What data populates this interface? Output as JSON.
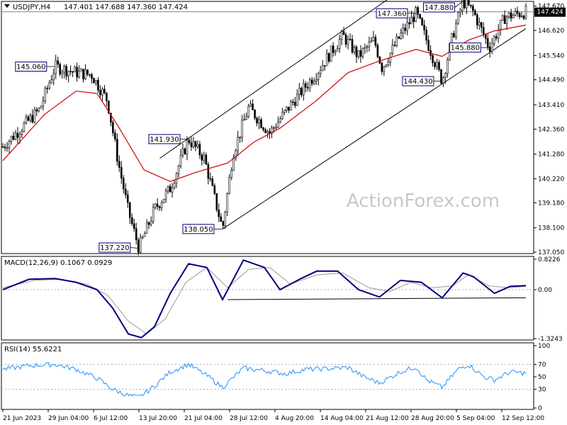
{
  "header": {
    "symbol_tf": "USDJPY,H4",
    "ohlc": "147.401 147.688 147.360 147.424"
  },
  "watermark": "ActionForex.com",
  "colors": {
    "candle": "#000000",
    "ma": "#cc0000",
    "macd": "#000080",
    "signal": "#999999",
    "rsi": "#1e90ff",
    "channel": "#000000",
    "label_border": "#000080",
    "price_tag_bg": "#000000"
  },
  "chart_data": [
    {
      "type": "candlestick",
      "title": "USDJPY,H4",
      "ylim": [
        137.05,
        147.75
      ],
      "ytick_labels": [
        "147.670",
        "146.620",
        "145.540",
        "144.490",
        "143.410",
        "142.360",
        "141.280",
        "140.220",
        "139.180",
        "138.100",
        "137.050"
      ],
      "ytick_values": [
        147.67,
        146.62,
        145.54,
        144.49,
        143.41,
        142.36,
        141.28,
        140.22,
        139.18,
        138.1,
        137.05
      ],
      "xtick_labels": [
        "21 Jun 2023",
        "29 Jun 04:00",
        "6 Jul 12:00",
        "13 Jul 20:00",
        "21 Jul 04:00",
        "28 Jul 12:00",
        "4 Aug 20:00",
        "14 Aug 04:00",
        "21 Aug 12:00",
        "28 Aug 20:00",
        "5 Sep 04:00",
        "12 Sep 12:00"
      ],
      "current_price": "147.424",
      "price_path": [
        {
          "x": 0,
          "y": 141.6
        },
        {
          "x": 0.07,
          "y": 143.2
        },
        {
          "x": 0.1,
          "y": 145.06
        },
        {
          "x": 0.14,
          "y": 144.8
        },
        {
          "x": 0.17,
          "y": 144.7
        },
        {
          "x": 0.2,
          "y": 143.6
        },
        {
          "x": 0.22,
          "y": 141.0
        },
        {
          "x": 0.24,
          "y": 138.8
        },
        {
          "x": 0.26,
          "y": 137.22
        },
        {
          "x": 0.29,
          "y": 138.9
        },
        {
          "x": 0.32,
          "y": 139.8
        },
        {
          "x": 0.355,
          "y": 141.93
        },
        {
          "x": 0.385,
          "y": 141.1
        },
        {
          "x": 0.42,
          "y": 138.05
        },
        {
          "x": 0.44,
          "y": 141.3
        },
        {
          "x": 0.47,
          "y": 143.3
        },
        {
          "x": 0.51,
          "y": 142.2
        },
        {
          "x": 0.55,
          "y": 143.4
        },
        {
          "x": 0.6,
          "y": 144.8
        },
        {
          "x": 0.65,
          "y": 146.4
        },
        {
          "x": 0.68,
          "y": 145.5
        },
        {
          "x": 0.71,
          "y": 146.2
        },
        {
          "x": 0.725,
          "y": 145.0
        },
        {
          "x": 0.76,
          "y": 146.4
        },
        {
          "x": 0.79,
          "y": 147.36
        },
        {
          "x": 0.81,
          "y": 146.2
        },
        {
          "x": 0.84,
          "y": 144.43
        },
        {
          "x": 0.86,
          "y": 146.4
        },
        {
          "x": 0.88,
          "y": 147.88
        },
        {
          "x": 0.9,
          "y": 147.4
        },
        {
          "x": 0.93,
          "y": 145.88
        },
        {
          "x": 0.96,
          "y": 147.2
        },
        {
          "x": 1,
          "y": 147.42
        }
      ],
      "ma_path": [
        {
          "x": 0,
          "y": 141.0
        },
        {
          "x": 0.08,
          "y": 143.0
        },
        {
          "x": 0.14,
          "y": 144.0
        },
        {
          "x": 0.18,
          "y": 143.9
        },
        {
          "x": 0.22,
          "y": 142.5
        },
        {
          "x": 0.27,
          "y": 140.6
        },
        {
          "x": 0.32,
          "y": 140.1
        },
        {
          "x": 0.37,
          "y": 140.5
        },
        {
          "x": 0.43,
          "y": 140.9
        },
        {
          "x": 0.48,
          "y": 141.8
        },
        {
          "x": 0.53,
          "y": 142.4
        },
        {
          "x": 0.6,
          "y": 143.6
        },
        {
          "x": 0.66,
          "y": 144.8
        },
        {
          "x": 0.72,
          "y": 145.3
        },
        {
          "x": 0.79,
          "y": 145.8
        },
        {
          "x": 0.84,
          "y": 145.5
        },
        {
          "x": 0.89,
          "y": 146.2
        },
        {
          "x": 0.94,
          "y": 146.6
        },
        {
          "x": 1,
          "y": 146.85
        }
      ],
      "channel_upper": [
        {
          "x": 0.3,
          "y": 141.1
        },
        {
          "x": 0.77,
          "y": 148.5
        }
      ],
      "channel_lower": [
        {
          "x": 0.42,
          "y": 138.05
        },
        {
          "x": 1,
          "y": 146.7
        }
      ],
      "annotations": [
        {
          "label": "145.060",
          "x": 0.1,
          "y": 145.06
        },
        {
          "label": "137.220",
          "x": 0.26,
          "y": 137.22
        },
        {
          "label": "141.930",
          "x": 0.355,
          "y": 141.93
        },
        {
          "label": "138.050",
          "x": 0.42,
          "y": 138.05
        },
        {
          "label": "147.360",
          "x": 0.79,
          "y": 147.36
        },
        {
          "label": "144.430",
          "x": 0.84,
          "y": 144.43
        },
        {
          "label": "147.880",
          "x": 0.88,
          "y": 147.88
        },
        {
          "label": "145.880",
          "x": 0.93,
          "y": 145.88
        }
      ]
    },
    {
      "type": "line",
      "title": "MACD(12,26,9) 0.1067 0.0929",
      "ylim": [
        -1.3243,
        0.8226
      ],
      "ytick_labels": [
        "0.8226",
        "0.00",
        "-1.3243"
      ],
      "ytick_values": [
        0.8226,
        0,
        -1.3243
      ],
      "support_line": [
        {
          "x": 0.43,
          "y": -0.27
        },
        {
          "x": 1,
          "y": -0.22
        }
      ],
      "series": [
        {
          "role": "macd",
          "values": [
            {
              "x": 0,
              "y": 0.0
            },
            {
              "x": 0.05,
              "y": 0.28
            },
            {
              "x": 0.1,
              "y": 0.3
            },
            {
              "x": 0.14,
              "y": 0.2
            },
            {
              "x": 0.18,
              "y": 0.0
            },
            {
              "x": 0.21,
              "y": -0.5
            },
            {
              "x": 0.24,
              "y": -1.2
            },
            {
              "x": 0.265,
              "y": -1.3
            },
            {
              "x": 0.29,
              "y": -1.0
            },
            {
              "x": 0.32,
              "y": -0.1
            },
            {
              "x": 0.355,
              "y": 0.7
            },
            {
              "x": 0.39,
              "y": 0.6
            },
            {
              "x": 0.42,
              "y": -0.27
            },
            {
              "x": 0.46,
              "y": 0.8
            },
            {
              "x": 0.5,
              "y": 0.6
            },
            {
              "x": 0.53,
              "y": 0.0
            },
            {
              "x": 0.57,
              "y": 0.3
            },
            {
              "x": 0.6,
              "y": 0.5
            },
            {
              "x": 0.64,
              "y": 0.5
            },
            {
              "x": 0.68,
              "y": 0.0
            },
            {
              "x": 0.72,
              "y": -0.2
            },
            {
              "x": 0.76,
              "y": 0.25
            },
            {
              "x": 0.8,
              "y": 0.2
            },
            {
              "x": 0.84,
              "y": -0.22
            },
            {
              "x": 0.88,
              "y": 0.45
            },
            {
              "x": 0.9,
              "y": 0.35
            },
            {
              "x": 0.94,
              "y": -0.1
            },
            {
              "x": 0.97,
              "y": 0.09
            },
            {
              "x": 1,
              "y": 0.1067
            }
          ]
        },
        {
          "role": "signal",
          "values": [
            {
              "x": 0,
              "y": 0.05
            },
            {
              "x": 0.06,
              "y": 0.25
            },
            {
              "x": 0.11,
              "y": 0.28
            },
            {
              "x": 0.16,
              "y": 0.15
            },
            {
              "x": 0.2,
              "y": -0.15
            },
            {
              "x": 0.24,
              "y": -0.85
            },
            {
              "x": 0.275,
              "y": -1.2
            },
            {
              "x": 0.31,
              "y": -0.8
            },
            {
              "x": 0.35,
              "y": 0.2
            },
            {
              "x": 0.39,
              "y": 0.6
            },
            {
              "x": 0.43,
              "y": 0.05
            },
            {
              "x": 0.47,
              "y": 0.55
            },
            {
              "x": 0.51,
              "y": 0.6
            },
            {
              "x": 0.55,
              "y": 0.15
            },
            {
              "x": 0.6,
              "y": 0.4
            },
            {
              "x": 0.65,
              "y": 0.45
            },
            {
              "x": 0.7,
              "y": 0.05
            },
            {
              "x": 0.74,
              "y": -0.05
            },
            {
              "x": 0.78,
              "y": 0.2
            },
            {
              "x": 0.82,
              "y": 0.05
            },
            {
              "x": 0.86,
              "y": 0.1
            },
            {
              "x": 0.89,
              "y": 0.4
            },
            {
              "x": 0.93,
              "y": 0.1
            },
            {
              "x": 0.97,
              "y": 0.05
            },
            {
              "x": 1,
              "y": 0.0929
            }
          ]
        }
      ]
    },
    {
      "type": "line",
      "title": "RSI(14) 55.6221",
      "ylim": [
        0,
        100
      ],
      "ytick_labels": [
        "100",
        "70",
        "50",
        "30",
        "0"
      ],
      "ytick_values": [
        100,
        70,
        50,
        30,
        0
      ],
      "series": [
        {
          "role": "rsi",
          "values": [
            {
              "x": 0,
              "y": 62
            },
            {
              "x": 0.05,
              "y": 68
            },
            {
              "x": 0.1,
              "y": 70
            },
            {
              "x": 0.14,
              "y": 62
            },
            {
              "x": 0.18,
              "y": 48
            },
            {
              "x": 0.21,
              "y": 30
            },
            {
              "x": 0.24,
              "y": 20
            },
            {
              "x": 0.26,
              "y": 17
            },
            {
              "x": 0.29,
              "y": 35
            },
            {
              "x": 0.32,
              "y": 58
            },
            {
              "x": 0.355,
              "y": 70
            },
            {
              "x": 0.39,
              "y": 52
            },
            {
              "x": 0.42,
              "y": 33
            },
            {
              "x": 0.46,
              "y": 64
            },
            {
              "x": 0.5,
              "y": 60
            },
            {
              "x": 0.54,
              "y": 55
            },
            {
              "x": 0.58,
              "y": 62
            },
            {
              "x": 0.62,
              "y": 63
            },
            {
              "x": 0.66,
              "y": 65
            },
            {
              "x": 0.69,
              "y": 50
            },
            {
              "x": 0.72,
              "y": 40
            },
            {
              "x": 0.76,
              "y": 58
            },
            {
              "x": 0.79,
              "y": 66
            },
            {
              "x": 0.81,
              "y": 45
            },
            {
              "x": 0.84,
              "y": 33
            },
            {
              "x": 0.87,
              "y": 62
            },
            {
              "x": 0.89,
              "y": 70
            },
            {
              "x": 0.92,
              "y": 50
            },
            {
              "x": 0.94,
              "y": 45
            },
            {
              "x": 0.97,
              "y": 58
            },
            {
              "x": 1,
              "y": 55.6221
            }
          ]
        }
      ]
    }
  ]
}
